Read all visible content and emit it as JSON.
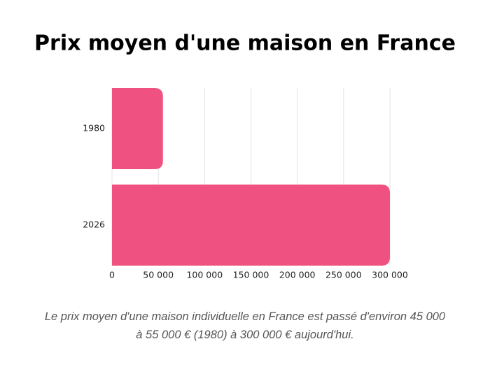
{
  "chart_data": {
    "type": "hbar",
    "title": "Prix moyen d'une maison en France",
    "categories": [
      "1980",
      "2026"
    ],
    "values": [
      55000,
      300000
    ],
    "color": "#ef5280",
    "xlim": [
      0,
      300000
    ],
    "xticks": [
      0,
      {
        "value": 50000,
        "label": "50 000"
      },
      {
        "value": 100000,
        "label": "100 000"
      },
      {
        "value": 150000,
        "label": "150 000"
      },
      {
        "value": 200000,
        "label": "200 000"
      },
      {
        "value": 250000,
        "label": "250 000"
      },
      {
        "value": 300000,
        "label": "300 000"
      }
    ],
    "grid": true,
    "caption": "Le prix moyen d'une maison individuelle en France est passé d'environ 45 000 à 55 000 € (1980) à 300 000 € aujourd'hui."
  }
}
